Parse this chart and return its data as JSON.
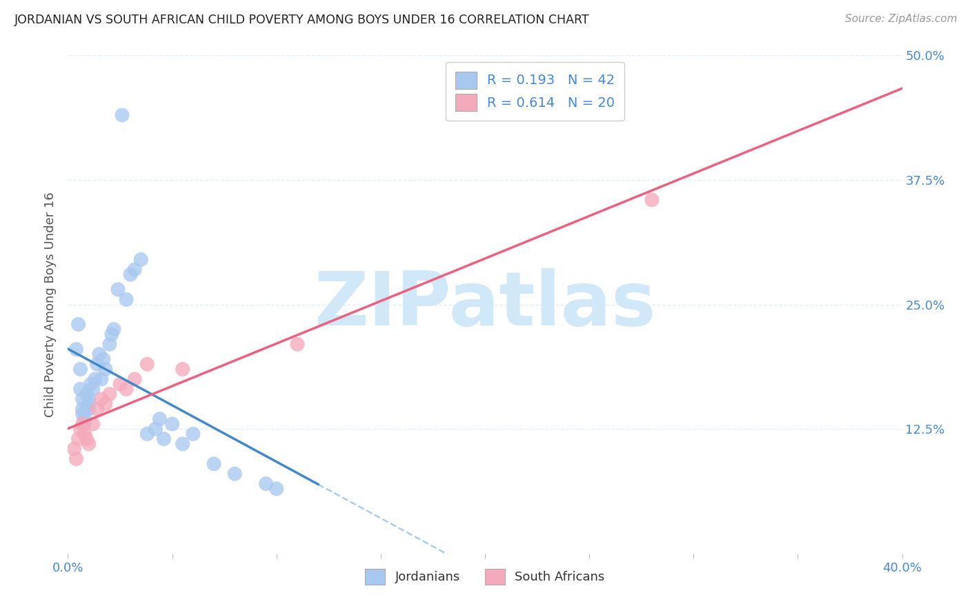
{
  "title": "JORDANIAN VS SOUTH AFRICAN CHILD POVERTY AMONG BOYS UNDER 16 CORRELATION CHART",
  "source": "Source: ZipAtlas.com",
  "ylabel": "Child Poverty Among Boys Under 16",
  "xlim": [
    0.0,
    0.4
  ],
  "ylim": [
    0.0,
    0.5
  ],
  "blue_color": "#A8C8F0",
  "pink_color": "#F5AABB",
  "blue_line_color": "#4488CC",
  "pink_line_color": "#EE6080",
  "ref_line_color": "#AACCEE",
  "watermark": "ZIPatlas",
  "watermark_color": "#D0E8F8",
  "background_color": "#FFFFFF",
  "grid_color": "#DDEEFF",
  "title_color": "#222222",
  "axis_label_color": "#555555",
  "tick_color_blue": "#4488DD",
  "N_jordan": 42,
  "N_sa": 20,
  "jordan_x": [
    0.004,
    0.005,
    0.006,
    0.006,
    0.007,
    0.007,
    0.007,
    0.008,
    0.008,
    0.009,
    0.009,
    0.01,
    0.01,
    0.01,
    0.011,
    0.012,
    0.013,
    0.014,
    0.015,
    0.016,
    0.017,
    0.018,
    0.02,
    0.021,
    0.022,
    0.024,
    0.026,
    0.028,
    0.03,
    0.032,
    0.035,
    0.038,
    0.042,
    0.044,
    0.046,
    0.05,
    0.055,
    0.06,
    0.07,
    0.08,
    0.095,
    0.1
  ],
  "jordan_y": [
    0.205,
    0.23,
    0.185,
    0.165,
    0.155,
    0.145,
    0.14,
    0.135,
    0.13,
    0.16,
    0.145,
    0.155,
    0.15,
    0.145,
    0.17,
    0.165,
    0.175,
    0.19,
    0.2,
    0.175,
    0.195,
    0.185,
    0.21,
    0.22,
    0.225,
    0.265,
    0.44,
    0.255,
    0.28,
    0.285,
    0.295,
    0.12,
    0.125,
    0.135,
    0.115,
    0.13,
    0.11,
    0.12,
    0.09,
    0.08,
    0.07,
    0.065
  ],
  "sa_x": [
    0.003,
    0.004,
    0.005,
    0.006,
    0.007,
    0.008,
    0.009,
    0.01,
    0.012,
    0.014,
    0.016,
    0.018,
    0.02,
    0.025,
    0.028,
    0.032,
    0.038,
    0.055,
    0.11,
    0.28
  ],
  "sa_y": [
    0.105,
    0.095,
    0.115,
    0.125,
    0.13,
    0.12,
    0.115,
    0.11,
    0.13,
    0.145,
    0.155,
    0.15,
    0.16,
    0.17,
    0.165,
    0.175,
    0.19,
    0.185,
    0.21,
    0.355
  ],
  "blue_line_x_end": 0.12,
  "legend1_R": "0.193",
  "legend1_N": "42",
  "legend2_R": "0.614",
  "legend2_N": "20",
  "legend_bottom1": "Jordanians",
  "legend_bottom2": "South Africans"
}
